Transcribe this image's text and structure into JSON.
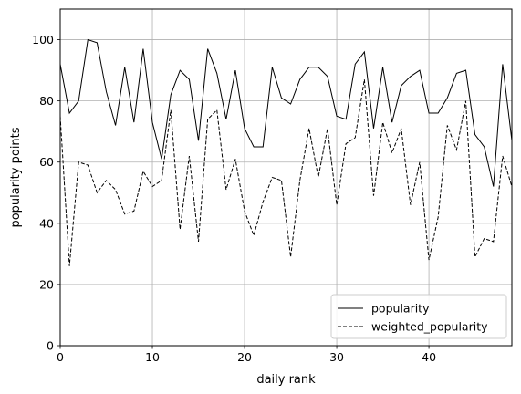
{
  "chart_data": {
    "type": "line",
    "xlabel": "daily rank",
    "ylabel": "popularity points",
    "xlim": [
      0,
      49
    ],
    "ylim": [
      0,
      110
    ],
    "xticks": [
      0,
      10,
      20,
      30,
      40
    ],
    "yticks": [
      0,
      20,
      40,
      60,
      80,
      100
    ],
    "grid": true,
    "legend_position": "lower-right",
    "x": [
      0,
      1,
      2,
      3,
      4,
      5,
      6,
      7,
      8,
      9,
      10,
      11,
      12,
      13,
      14,
      15,
      16,
      17,
      18,
      19,
      20,
      21,
      22,
      23,
      24,
      25,
      26,
      27,
      28,
      29,
      30,
      31,
      32,
      33,
      34,
      35,
      36,
      37,
      38,
      39,
      40,
      41,
      42,
      43,
      44,
      45,
      46,
      47,
      48,
      49
    ],
    "series": [
      {
        "name": "popularity",
        "style": "solid",
        "color": "#000000",
        "values": [
          92,
          76,
          80,
          100,
          99,
          83,
          72,
          91,
          73,
          97,
          73,
          61,
          82,
          90,
          87,
          67,
          97,
          89,
          74,
          90,
          71,
          65,
          65,
          91,
          81,
          79,
          87,
          91,
          91,
          88,
          75,
          74,
          92,
          96,
          71,
          91,
          73,
          85,
          88,
          90,
          76,
          76,
          81,
          89,
          90,
          69,
          65,
          52,
          92,
          67
        ]
      },
      {
        "name": "weighted_popularity",
        "style": "dashed",
        "color": "#000000",
        "values": [
          75,
          26,
          60,
          59,
          50,
          54,
          51,
          43,
          44,
          57,
          52,
          54,
          77,
          38,
          62,
          34,
          74,
          77,
          51,
          61,
          44,
          36,
          47,
          55,
          54,
          29,
          54,
          71,
          55,
          71,
          46,
          66,
          68,
          87,
          49,
          73,
          63,
          71,
          46,
          60,
          28,
          42,
          72,
          64,
          80,
          29,
          35,
          34,
          62,
          52
        ]
      }
    ]
  }
}
